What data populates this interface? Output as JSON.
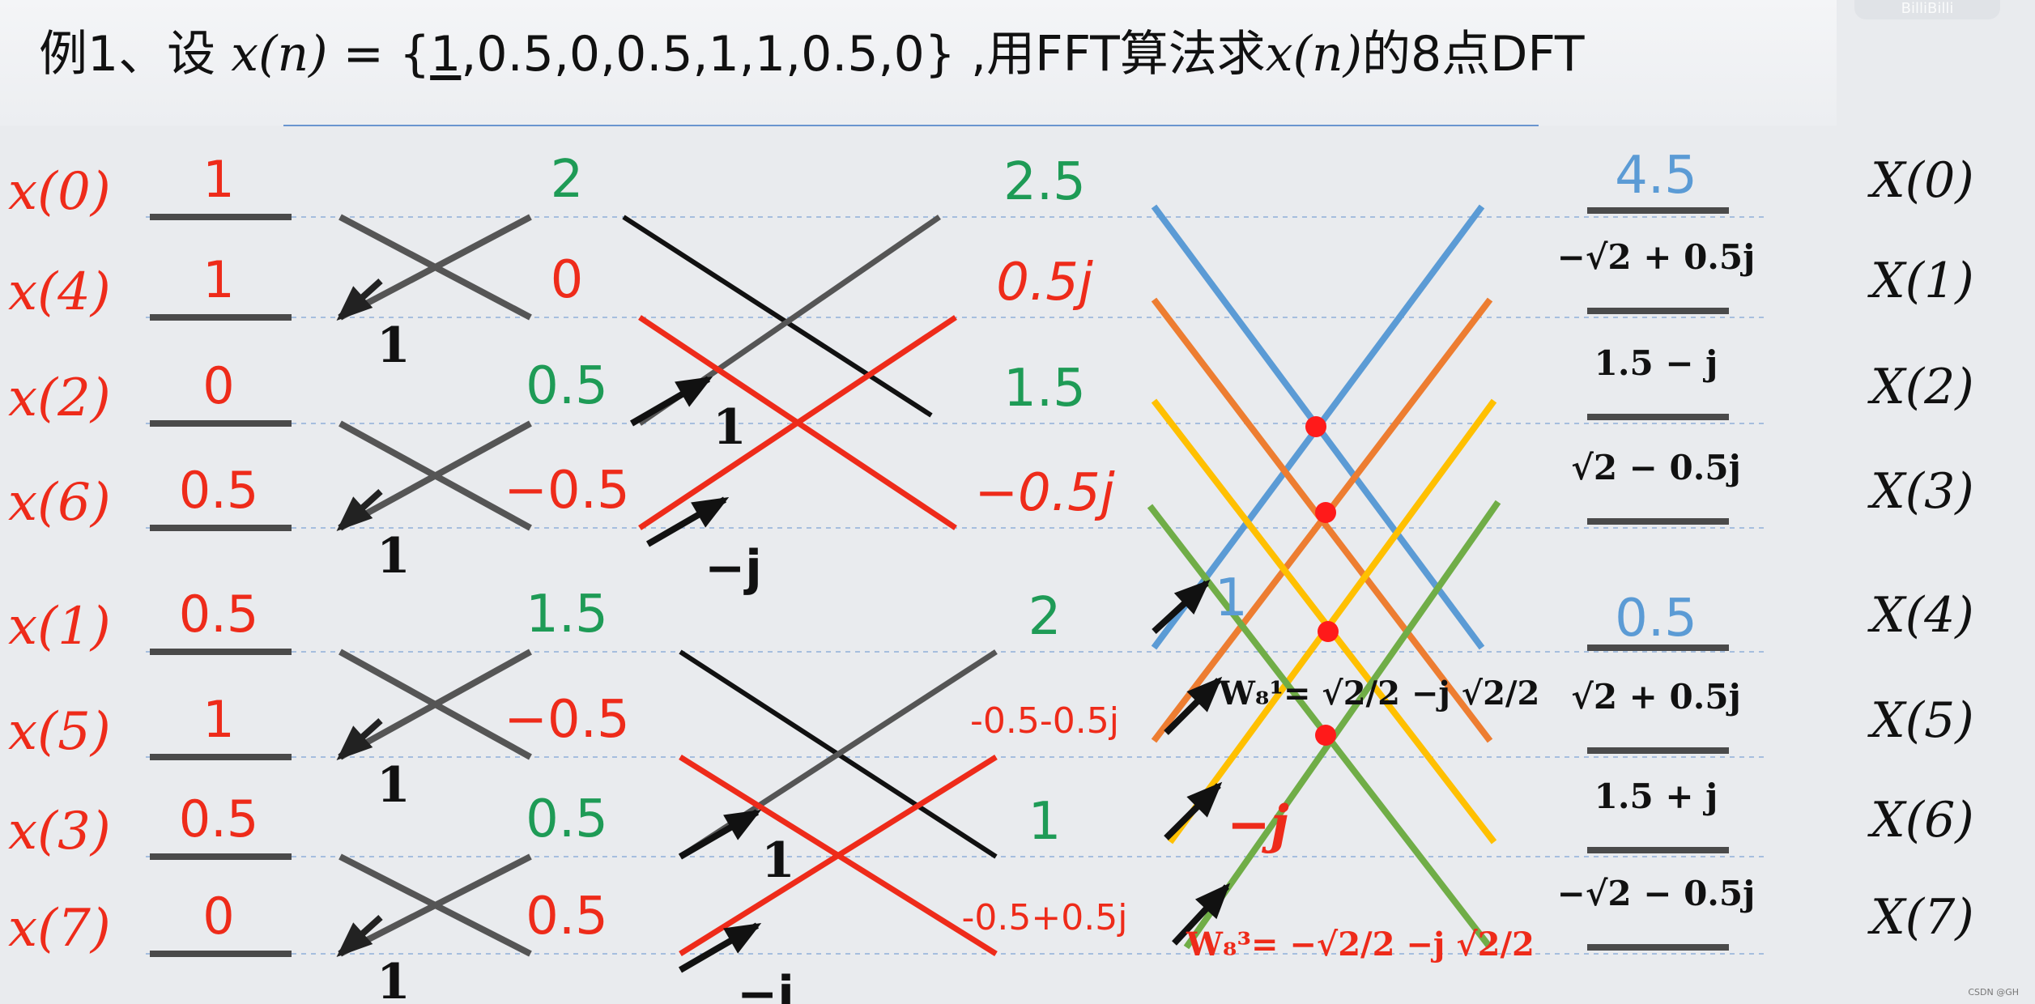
{
  "title": {
    "prefix": "例1、设 ",
    "x_of_n": "x(n)",
    "equals": " = {",
    "first": "1",
    "rest": ",0.5,0,0.5,1,1,0.5,0}",
    "suffix_before": " ,用FFT算法求",
    "x_of_n2": "x(n)",
    "suffix_after": "的8点DFT"
  },
  "watermark": "BilliBilli",
  "csdn_mark": "CSDN @GH",
  "colors": {
    "red": "#ee2b1a",
    "green": "#1e9b56",
    "black": "#111111",
    "gray": "#555555",
    "blue": "#5b9bd5",
    "orange": "#ed7d31",
    "yellow": "#ffc000",
    "olive": "#70ad47",
    "dot": "#ff1a1a"
  },
  "inputs": [
    {
      "label": "x(0)",
      "value": "1"
    },
    {
      "label": "x(4)",
      "value": "1"
    },
    {
      "label": "x(2)",
      "value": "0"
    },
    {
      "label": "x(6)",
      "value": "0.5"
    },
    {
      "label": "x(1)",
      "value": "0.5"
    },
    {
      "label": "x(5)",
      "value": "1"
    },
    {
      "label": "x(3)",
      "value": "0.5"
    },
    {
      "label": "x(7)",
      "value": "0"
    }
  ],
  "stage1": [
    {
      "value": "2",
      "color": "green"
    },
    {
      "value": "0",
      "color": "red"
    },
    {
      "value": "0.5",
      "color": "green"
    },
    {
      "value": "−0.5",
      "color": "red"
    },
    {
      "value": "1.5",
      "color": "green"
    },
    {
      "value": "−0.5",
      "color": "red"
    },
    {
      "value": "0.5",
      "color": "green"
    },
    {
      "value": "0.5",
      "color": "red"
    }
  ],
  "stage1_twiddles": [
    "1",
    "1",
    "1",
    "1"
  ],
  "stage2": [
    {
      "value": "2.5",
      "color": "green"
    },
    {
      "value": "0.5j",
      "color": "red"
    },
    {
      "value": "1.5",
      "color": "green"
    },
    {
      "value": "−0.5j",
      "color": "red"
    },
    {
      "value": "2",
      "color": "green"
    },
    {
      "value": "-0.5-0.5j",
      "color": "red"
    },
    {
      "value": "1",
      "color": "green"
    },
    {
      "value": "-0.5+0.5j",
      "color": "red"
    }
  ],
  "stage2_twiddles": [
    "1",
    "−j",
    "1",
    "−j"
  ],
  "stage3_twiddles": {
    "w0": "1",
    "w1": "W₈¹= √2/2 −j √2/2",
    "w2": "−j",
    "w3": "W₈³= −√2/2 −j √2/2"
  },
  "outputs": [
    {
      "value": "4.5",
      "label": "X(0)"
    },
    {
      "value": "−√2 + 0.5j",
      "label": "X(1)"
    },
    {
      "value": "1.5 − j",
      "label": "X(2)"
    },
    {
      "value": "√2 − 0.5j",
      "label": "X(3)"
    },
    {
      "value": "0.5",
      "label": "X(4)"
    },
    {
      "value": "√2 + 0.5j",
      "label": "X(5)"
    },
    {
      "value": "1.5 + j",
      "label": "X(6)"
    },
    {
      "value": "−√2 − 0.5j",
      "label": "X(7)"
    }
  ]
}
